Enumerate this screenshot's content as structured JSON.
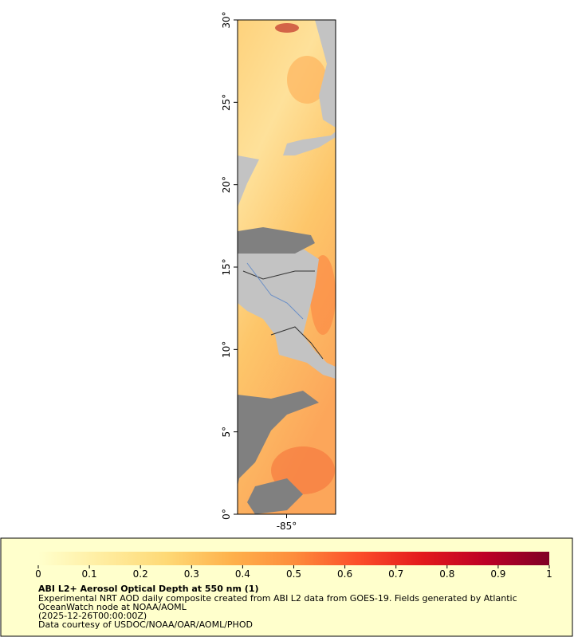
{
  "chart_data": {
    "type": "map",
    "title": "ABI L2+ Aerosol Optical Depth at 550 nm (1)",
    "description": [
      "Experimental NRT AOD daily composite created from ABI L2 data from GOES-19. Fields generated by Atlantic",
      "OceanWatch node at NOAA/AOML",
      "(2025-12-26T00:00:00Z)",
      "Data courtesy of USDOC/NOAA/OAR/AOML/PHOD"
    ],
    "ylim": [
      0,
      30
    ],
    "yticks": [
      {
        "value": 0,
        "label": "0°"
      },
      {
        "value": 5,
        "label": "5°"
      },
      {
        "value": 10,
        "label": "10°"
      },
      {
        "value": 15,
        "label": "15°"
      },
      {
        "value": 20,
        "label": "20°"
      },
      {
        "value": 25,
        "label": "25°"
      },
      {
        "value": 30,
        "label": "30°"
      }
    ],
    "xlim": [
      -88,
      -82
    ],
    "xticks": [
      {
        "value": -85,
        "label": "-85°"
      }
    ],
    "colorbar": {
      "range": [
        0,
        1
      ],
      "ticks": [
        0,
        0.1,
        0.2,
        0.3,
        0.4,
        0.5,
        0.6,
        0.7,
        0.8,
        0.9,
        1
      ],
      "colors": [
        "#ffffcc",
        "#ffeda0",
        "#fed976",
        "#feb24c",
        "#fd8d3c",
        "#fc4e2a",
        "#e31a1c",
        "#bd0026",
        "#800026"
      ]
    }
  }
}
